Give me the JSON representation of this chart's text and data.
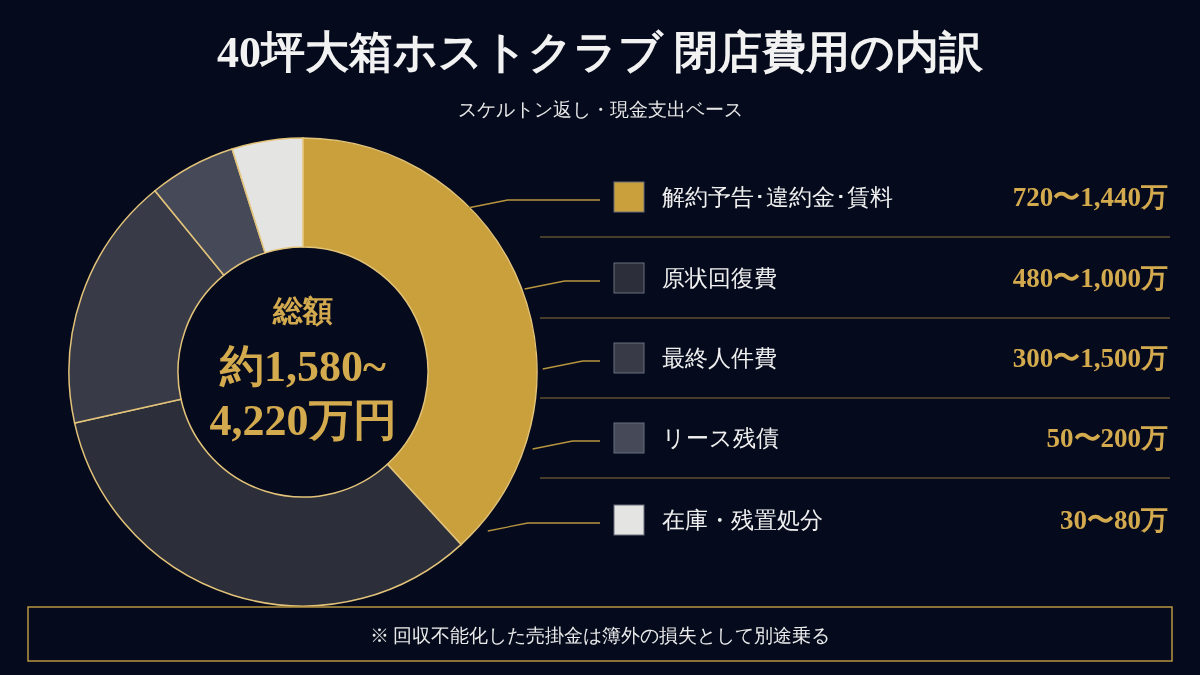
{
  "chart_data": {
    "type": "donut",
    "title": "40坪大箱ホストクラブ 閉店費用の内訳",
    "subtitle": "スケルトン返し・現金支出ベース",
    "categories": [
      "解約予告･違約金･賃料",
      "原状回復費",
      "最終人件費",
      "リース残債",
      "在庫・残置処分"
    ],
    "values": [
      38.2,
      33.3,
      17.6,
      6.0,
      4.9
    ],
    "colors": [
      "#c9a03c",
      "#2c2f39",
      "#383b47",
      "#454958",
      "#e4e4e2"
    ],
    "legend": "right",
    "annotations": [
      "総額",
      "約1,580~",
      "4,220万円",
      "720〜1,440万",
      "480〜1,000万",
      "300〜1,500万",
      "50〜200万",
      "30〜80万",
      "※ 回収不能化した売掛金は簿外の損失として別途乗る"
    ]
  }
}
